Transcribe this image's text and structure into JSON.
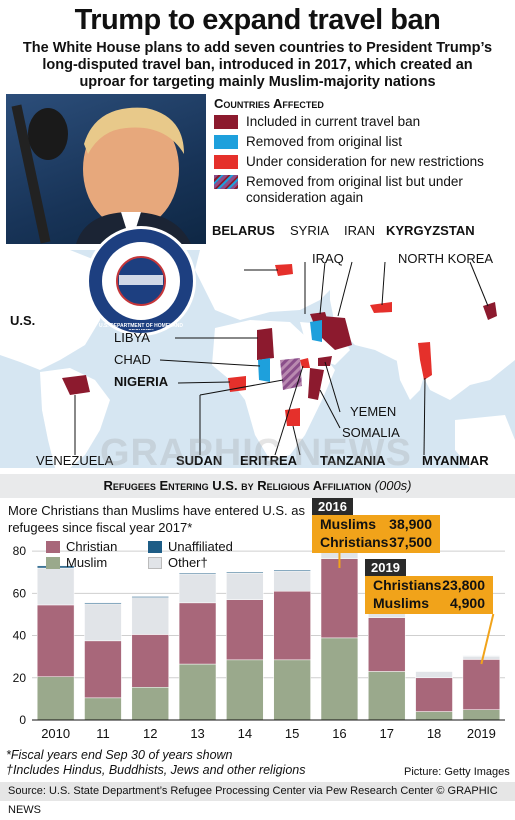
{
  "title": "Trump to expand travel ban",
  "subtitle": "The White House plans to add seven countries to President Trump’s long-disputed travel ban, introduced in 2017, which created an uproar for targeting mainly Muslim-majority nations",
  "legend": {
    "title": "Countries Affected",
    "items": [
      {
        "label": "Included in current travel ban",
        "color": "#8c1a2e"
      },
      {
        "label": "Removed from original list",
        "color": "#1ea0dc"
      },
      {
        "label": "Under consideration for new restrictions",
        "color": "#e5302b"
      },
      {
        "label": "Removed from original list but under consideration again",
        "color": "#8a4e8a"
      }
    ]
  },
  "seal_text": "U.S. DEPARTMENT OF HOMELAND SECURITY",
  "map": {
    "labels": {
      "belarus": "BELARUS",
      "syria": "SYRIA",
      "iran": "IRAN",
      "kyrgyzstan": "KYRGYZSTAN",
      "iraq": "IRAQ",
      "north_korea": "NORTH KOREA",
      "us": "U.S.",
      "libya": "LIBYA",
      "chad": "CHAD",
      "nigeria": "NIGERIA",
      "yemen": "YEMEN",
      "somalia": "SOMALIA",
      "venezuela": "VENEZUELA",
      "sudan": "SUDAN",
      "eritrea": "ERITREA",
      "tanzania": "TANZANIA",
      "myanmar": "MYANMAR"
    },
    "colors": {
      "current": "#8c1a2e",
      "removed": "#1ea0dc",
      "consideration": "#e5302b",
      "both": "#8a4e8a",
      "land": "#ffffff",
      "sea": "#d6e6f2"
    }
  },
  "chart_header": {
    "main": "Refugees Entering U.S. by Religious Affiliation",
    "unit": "(000s)"
  },
  "chart_intro": "More Christians than Muslims have entered U.S. as refugees since fiscal year 2017*",
  "chart_data": {
    "type": "bar",
    "stacked": true,
    "categories": [
      "2010",
      "11",
      "12",
      "13",
      "14",
      "15",
      "16",
      "17",
      "18",
      "2019"
    ],
    "series": [
      {
        "name": "Muslim",
        "color": "#9aa98c",
        "values": [
          20.5,
          10.5,
          15.5,
          26.5,
          28.5,
          28.5,
          38.9,
          23,
          4,
          4.9
        ]
      },
      {
        "name": "Christian",
        "color": "#a8677a",
        "values": [
          34,
          27,
          25,
          29,
          28.5,
          32.5,
          37.5,
          25.5,
          16,
          23.8
        ]
      },
      {
        "name": "Other†",
        "color": "#e1e4e8",
        "values": [
          17.5,
          17.5,
          17.5,
          13.5,
          12.5,
          9.5,
          8.5,
          5,
          3,
          1.5
        ]
      },
      {
        "name": "Unaffiliated",
        "color": "#1e5d86",
        "values": [
          1,
          0.5,
          0.5,
          0.5,
          0.5,
          0.5,
          0.5,
          0.5,
          0.2,
          0.2
        ]
      }
    ],
    "yticks": [
      0,
      20,
      40,
      60,
      80
    ],
    "ylim": [
      0,
      90
    ],
    "grid": true,
    "legend_position": "top-left"
  },
  "callouts": {
    "y2016": {
      "year": "2016",
      "rows": [
        {
          "label": "Muslims",
          "value": "38,900"
        },
        {
          "label": "Christians",
          "value": "37,500"
        }
      ]
    },
    "y2019": {
      "year": "2019",
      "rows": [
        {
          "label": "Christians",
          "value": "23,800"
        },
        {
          "label": "Muslims",
          "value": "4,900"
        }
      ]
    }
  },
  "footnotes": [
    "*Fiscal years end Sep 30 of years shown",
    "†Includes Hindus, Buddhists, Jews and other religions"
  ],
  "credit": "Picture: Getty Images",
  "source": "Source: U.S. State Department’s Refugee Processing Center via Pew Research Center   © GRAPHIC NEWS",
  "watermark": "GRAPHIC NEWS"
}
